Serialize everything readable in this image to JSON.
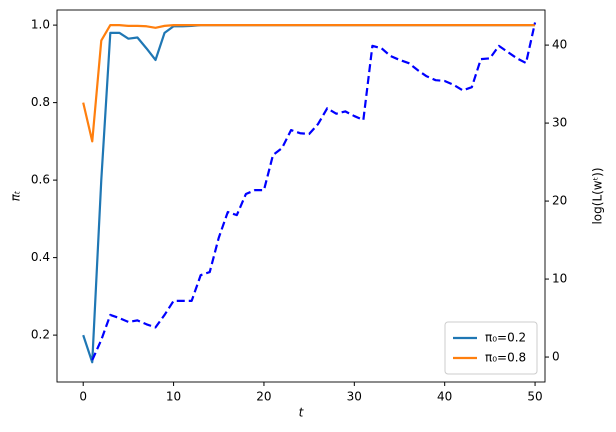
{
  "chart_data": {
    "type": "line",
    "xlabel": "t",
    "ylabel": "πₜ",
    "y2label": "log(L(wᵗ))",
    "x": [
      0,
      1,
      2,
      3,
      4,
      5,
      6,
      7,
      8,
      9,
      10,
      11,
      12,
      13,
      14,
      15,
      16,
      17,
      18,
      19,
      20,
      21,
      22,
      23,
      24,
      25,
      26,
      27,
      28,
      29,
      30,
      31,
      32,
      33,
      34,
      35,
      36,
      37,
      38,
      39,
      40,
      41,
      42,
      43,
      44,
      45,
      46,
      47,
      48,
      49,
      50
    ],
    "xlim": [
      -2.9,
      51.1
    ],
    "xticks": [
      0,
      10,
      20,
      30,
      40,
      50
    ],
    "ylim": [
      0.079,
      1.039
    ],
    "yticks": [
      0.2,
      0.4,
      0.6,
      0.8,
      {
        "value": 1,
        "label": "1.0"
      }
    ],
    "y2lim": [
      -3.2,
      44.5
    ],
    "y2ticks": [
      0,
      10,
      20,
      30,
      40
    ],
    "legend": "lower right",
    "series": [
      {
        "name": "π₀=0.2",
        "color": "#1f77b4",
        "values": [
          0.2,
          0.13,
          0.6,
          0.98,
          0.98,
          0.965,
          0.968,
          0.94,
          0.91,
          0.98,
          0.997,
          0.997,
          0.998,
          1,
          1,
          1,
          1,
          1,
          1,
          1,
          1,
          1,
          1,
          1,
          1,
          1,
          1,
          1,
          1,
          1,
          1,
          1,
          1,
          1,
          1,
          1,
          1,
          1,
          1,
          1,
          1,
          1,
          1,
          1,
          1,
          1,
          1,
          1,
          1,
          1,
          1
        ]
      },
      {
        "name": "π₀=0.8",
        "color": "#ff7f0e",
        "values": [
          0.8,
          0.7,
          0.96,
          1,
          1,
          0.998,
          0.998,
          0.997,
          0.993,
          0.998,
          1,
          1,
          1,
          1,
          1,
          1,
          1,
          1,
          1,
          1,
          1,
          1,
          1,
          1,
          1,
          1,
          1,
          1,
          1,
          1,
          1,
          1,
          1,
          1,
          1,
          1,
          1,
          1,
          1,
          1,
          1,
          1,
          1,
          1,
          1,
          1,
          1,
          1,
          1,
          1,
          1
        ]
      },
      {
        "color": "#0000ff",
        "axis": "y2",
        "dashed": true,
        "values": [
          null,
          -0.4,
          2.2,
          5.4,
          5,
          4.5,
          4.7,
          4.2,
          3.8,
          5.4,
          7.2,
          7.2,
          7.2,
          10.5,
          10.9,
          15.3,
          18.6,
          18.2,
          20.9,
          21.4,
          21.4,
          25.9,
          26.8,
          29.1,
          28.7,
          28.6,
          29.9,
          31.9,
          31.2,
          31.5,
          30.9,
          30.4,
          39.9,
          39.6,
          38.6,
          38.1,
          37.7,
          36.8,
          36,
          35.5,
          35.4,
          34.9,
          34.2,
          34.6,
          38.2,
          38.3,
          39.9,
          39.1,
          38.3,
          37.7,
          42.9
        ]
      }
    ]
  }
}
